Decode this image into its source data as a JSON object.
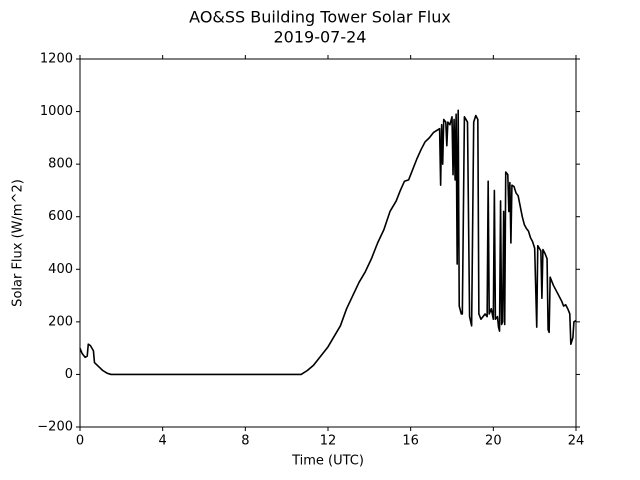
{
  "chart_data": {
    "type": "line",
    "title": "AO&SS Building Tower Solar Flux",
    "subtitle": "2019-07-24",
    "x_label": "Time (UTC)",
    "y_label": "Solar Flux (W/m^2)",
    "color": "#000000",
    "grid": false,
    "xlim": [
      0,
      24
    ],
    "xticks": [
      0,
      4,
      8,
      12,
      16,
      20,
      24
    ],
    "ylim": [
      -200,
      1200
    ],
    "yticks": [
      -200,
      0,
      200,
      400,
      600,
      800,
      1000,
      1200
    ],
    "x": [
      0,
      0.1,
      0.25,
      0.35,
      0.4,
      0.5,
      0.65,
      0.7,
      0.9,
      1.1,
      1.3,
      1.5,
      10.7,
      11,
      11.3,
      11.6,
      12,
      12.3,
      12.6,
      12.9,
      13.2,
      13.5,
      13.8,
      14.1,
      14.4,
      14.7,
      15,
      15.3,
      15.5,
      15.7,
      15.9,
      16.1,
      16.3,
      16.5,
      16.7,
      16.9,
      17.1,
      17.3,
      17.4,
      17.45,
      17.5,
      17.55,
      17.6,
      17.7,
      17.75,
      17.8,
      17.9,
      18.0,
      18.05,
      18.1,
      18.15,
      18.2,
      18.25,
      18.3,
      18.35,
      18.45,
      18.5,
      18.6,
      18.75,
      18.85,
      18.95,
      19.05,
      19.15,
      19.25,
      19.3,
      19.4,
      19.5,
      19.6,
      19.7,
      19.75,
      19.8,
      19.9,
      20.0,
      20.05,
      20.1,
      20.2,
      20.25,
      20.3,
      20.35,
      20.4,
      20.45,
      20.5,
      20.55,
      20.6,
      20.7,
      20.75,
      20.8,
      20.85,
      20.9,
      21.0,
      21.1,
      21.2,
      21.3,
      21.4,
      21.5,
      21.6,
      21.7,
      21.8,
      21.9,
      22.0,
      22.1,
      22.15,
      22.3,
      22.35,
      22.4,
      22.5,
      22.6,
      22.65,
      22.7,
      22.75,
      22.9,
      23.1,
      23.3,
      23.4,
      23.5,
      23.6,
      23.7,
      23.75,
      23.85,
      23.9,
      24.0
    ],
    "values": [
      100,
      80,
      65,
      70,
      115,
      110,
      90,
      45,
      30,
      15,
      5,
      0,
      0,
      15,
      35,
      65,
      105,
      145,
      185,
      250,
      300,
      350,
      390,
      440,
      500,
      550,
      620,
      660,
      700,
      735,
      740,
      780,
      820,
      855,
      885,
      900,
      920,
      930,
      935,
      720,
      950,
      800,
      970,
      960,
      870,
      960,
      950,
      980,
      760,
      970,
      740,
      990,
      420,
      1005,
      260,
      230,
      230,
      980,
      960,
      220,
      185,
      960,
      985,
      970,
      230,
      210,
      220,
      230,
      220,
      735,
      230,
      250,
      210,
      700,
      210,
      220,
      180,
      165,
      660,
      190,
      200,
      620,
      190,
      770,
      760,
      620,
      730,
      500,
      720,
      715,
      690,
      680,
      640,
      600,
      570,
      555,
      545,
      520,
      505,
      480,
      180,
      490,
      470,
      290,
      475,
      460,
      440,
      170,
      160,
      370,
      340,
      310,
      280,
      260,
      265,
      250,
      230,
      115,
      140,
      200,
      205
    ]
  }
}
